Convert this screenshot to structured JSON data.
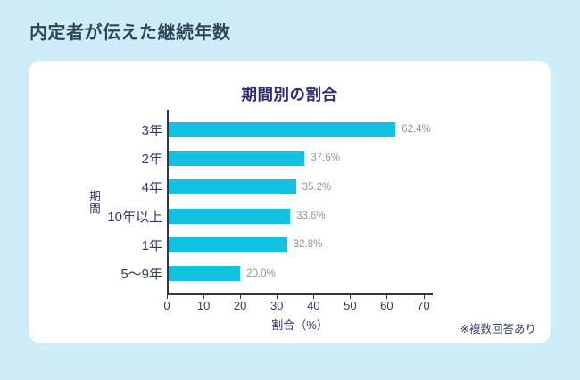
{
  "page_title": "内定者が伝えた継続年数",
  "note": "※複数回答あり",
  "colors": {
    "background": "#cdedf7",
    "card": "#ffffff",
    "page_title_text": "#30455a",
    "chart_title_text": "#2b2d6e",
    "axis_text": "#333a64",
    "bar": "#10c1e2",
    "value_label_text": "#8c929d",
    "axis_line": "#33363f"
  },
  "chart_data": {
    "type": "bar",
    "orientation": "horizontal",
    "title": "期間別の割合",
    "categories": [
      "3年",
      "2年",
      "4年",
      "10年以上",
      "1年",
      "5〜9年"
    ],
    "values": [
      62.4,
      37.6,
      35.2,
      33.6,
      32.8,
      20.0
    ],
    "value_labels": [
      "62.4%",
      "37.6%",
      "35.2%",
      "33.6%",
      "32.8%",
      "20.0%"
    ],
    "xlabel": "割合（%）",
    "ylabel": "期間",
    "xlim": [
      0,
      70
    ],
    "xticks": [
      0,
      10,
      20,
      30,
      40,
      50,
      60,
      70
    ],
    "grid": false,
    "legend": "none"
  }
}
